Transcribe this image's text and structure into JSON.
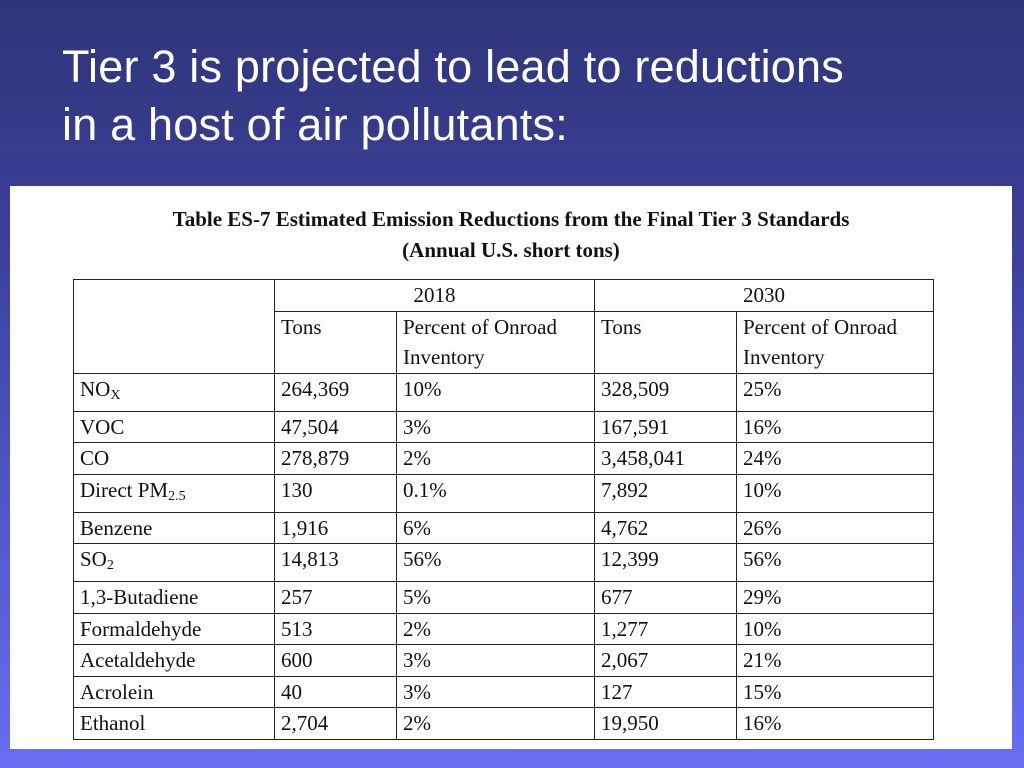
{
  "slide": {
    "title_line1": "Tier 3 is projected to lead to reductions",
    "title_line2": "in a host of air pollutants:"
  },
  "table": {
    "caption_line1": "Table ES-7 Estimated Emission Reductions from the Final Tier 3 Standards",
    "caption_line2": "(Annual U.S. short tons)",
    "years": [
      "2018",
      "2030"
    ],
    "subheaders": [
      "Tons",
      "Percent of Onroad Inventory",
      "Tons",
      "Percent of Onroad Inventory"
    ],
    "rows": [
      {
        "pollutant": "NO",
        "pollutant_sub": "X",
        "t2018": "264,369",
        "p2018": "10%",
        "t2030": "328,509",
        "p2030": "25%"
      },
      {
        "pollutant": "VOC",
        "pollutant_sub": "",
        "t2018": "47,504",
        "p2018": "3%",
        "t2030": "167,591",
        "p2030": "16%"
      },
      {
        "pollutant": "CO",
        "pollutant_sub": "",
        "t2018": "278,879",
        "p2018": "2%",
        "t2030": "3,458,041",
        "p2030": "24%"
      },
      {
        "pollutant": "Direct PM",
        "pollutant_sub": "2.5",
        "t2018": "130",
        "p2018": "0.1%",
        "t2030": "7,892",
        "p2030": "10%"
      },
      {
        "pollutant": "Benzene",
        "pollutant_sub": "",
        "t2018": "1,916",
        "p2018": "6%",
        "t2030": "4,762",
        "p2030": "26%"
      },
      {
        "pollutant": "SO",
        "pollutant_sub": "2",
        "t2018": "14,813",
        "p2018": "56%",
        "t2030": "12,399",
        "p2030": "56%"
      },
      {
        "pollutant": "1,3-Butadiene",
        "pollutant_sub": "",
        "t2018": "257",
        "p2018": "5%",
        "t2030": "677",
        "p2030": "29%"
      },
      {
        "pollutant": "Formaldehyde",
        "pollutant_sub": "",
        "t2018": "513",
        "p2018": "2%",
        "t2030": "1,277",
        "p2030": "10%"
      },
      {
        "pollutant": "Acetaldehyde",
        "pollutant_sub": "",
        "t2018": "600",
        "p2018": "3%",
        "t2030": "2,067",
        "p2030": "21%"
      },
      {
        "pollutant": "Acrolein",
        "pollutant_sub": "",
        "t2018": "40",
        "p2018": "3%",
        "t2030": "127",
        "p2030": "15%"
      },
      {
        "pollutant": "Ethanol",
        "pollutant_sub": "",
        "t2018": "2,704",
        "p2018": "2%",
        "t2030": "19,950",
        "p2030": "16%"
      }
    ]
  }
}
